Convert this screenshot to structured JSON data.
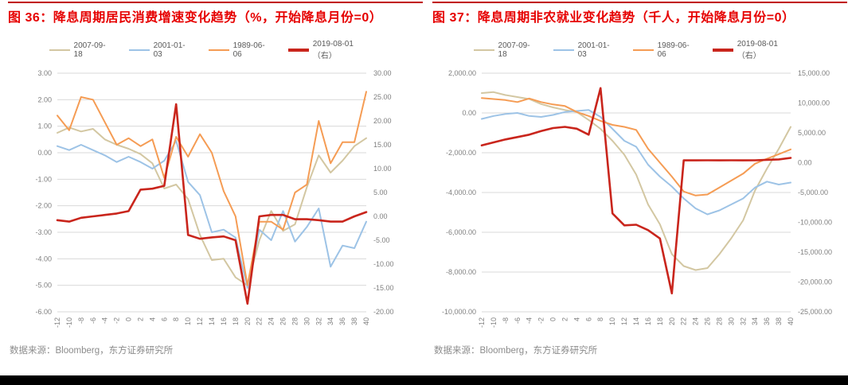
{
  "colors": {
    "title_red": "#E60000",
    "rule_red": "#C00000",
    "grid": "#D9D9D9",
    "axis_text": "#7F7F7F",
    "legend_text": "#595959",
    "source_text": "#8C8C8C",
    "bottom_bar": "#000000",
    "series_tan": "#D3C7A2",
    "series_blue": "#9DC3E6",
    "series_orange": "#F59C54",
    "series_red": "#C9251C"
  },
  "figures": [
    {
      "title": "图 36：降息周期居民消费增速变化趋势（%，开始降息月份=0）",
      "source": "数据来源：Bloomberg，东方证券研究所",
      "chart_data": {
        "type": "line",
        "grid": "horizontal",
        "legend_position": "top",
        "x": [
          -12,
          -10,
          -8,
          -6,
          -4,
          -2,
          0,
          2,
          4,
          6,
          8,
          10,
          12,
          14,
          16,
          18,
          20,
          22,
          24,
          26,
          28,
          30,
          32,
          34,
          36,
          38,
          40
        ],
        "x_tick_labels": [
          "-12",
          "-10",
          "-8",
          "-6",
          "-4",
          "-2",
          "0",
          "2",
          "4",
          "6",
          "8",
          "10",
          "12",
          "14",
          "16",
          "18",
          "20",
          "22",
          "24",
          "26",
          "28",
          "30",
          "32",
          "34",
          "36",
          "38",
          "40"
        ],
        "y_left": {
          "max": 3,
          "min": -6,
          "tick_labels": [
            "3.00",
            "2.00",
            "1.00",
            "0.00",
            "-1.00",
            "-2.00",
            "-3.00",
            "-4.00",
            "-5.00",
            "-6.00"
          ]
        },
        "y_right": {
          "max": 30,
          "min": -20,
          "tick_labels": [
            "30.00",
            "25.00",
            "20.00",
            "15.00",
            "10.00",
            "5.00",
            "0.00",
            "-5.00",
            "-10.00",
            "-15.00",
            "-20.00"
          ]
        },
        "series": [
          {
            "name": "2007-09-18",
            "color": "#D3C7A2",
            "axis": "left",
            "values": [
              0.75,
              0.95,
              0.8,
              0.9,
              0.5,
              0.3,
              0.15,
              -0.05,
              -0.4,
              -1.35,
              -1.2,
              -1.75,
              -3.1,
              -4.05,
              -4.0,
              -4.7,
              -5.0,
              -3.3,
              -2.2,
              -2.95,
              -2.7,
              -1.3,
              -0.1,
              -0.75,
              -0.3,
              0.25,
              0.55
            ]
          },
          {
            "name": "2001-01-03",
            "color": "#9DC3E6",
            "axis": "left",
            "values": [
              0.25,
              0.1,
              0.3,
              0.1,
              -0.1,
              -0.35,
              -0.15,
              -0.35,
              -0.6,
              -0.3,
              0.45,
              -1.1,
              -1.6,
              -3.0,
              -2.9,
              -3.2,
              -5.1,
              -2.9,
              -3.3,
              -2.2,
              -3.35,
              -2.8,
              -2.1,
              -4.3,
              -3.5,
              -3.6,
              -2.6
            ]
          },
          {
            "name": "1989-06-06",
            "color": "#F59C54",
            "axis": "left",
            "values": [
              1.4,
              0.85,
              2.1,
              2.0,
              1.15,
              0.3,
              0.55,
              0.25,
              0.5,
              -0.95,
              0.6,
              -0.15,
              0.7,
              0.0,
              -1.45,
              -2.4,
              -5.0,
              -2.6,
              -2.6,
              -2.9,
              -1.5,
              -1.2,
              1.2,
              -0.4,
              0.4,
              0.4,
              2.3
            ]
          },
          {
            "name": "2019-08-01（右）",
            "color": "#C9251C",
            "axis": "right",
            "values": [
              -0.8,
              -1.1,
              -0.3,
              0.0,
              0.3,
              0.6,
              1.1,
              5.6,
              5.8,
              6.4,
              23.5,
              -3.9,
              -4.7,
              -4.4,
              -4.2,
              -5.0,
              -18.3,
              0.0,
              0.3,
              0.3,
              -0.6,
              -0.6,
              -0.8,
              -1.1,
              -1.1,
              0.0,
              0.9
            ]
          }
        ]
      }
    },
    {
      "title": "图 37：降息周期非农就业变化趋势（千人，开始降息月份=0）",
      "source": "数据来源：Bloomberg，东方证券研究所",
      "chart_data": {
        "type": "line",
        "grid": "horizontal",
        "legend_position": "top",
        "x": [
          -12,
          -10,
          -8,
          -6,
          -4,
          -2,
          0,
          2,
          4,
          6,
          8,
          10,
          12,
          14,
          16,
          18,
          20,
          22,
          24,
          26,
          28,
          30,
          32,
          34,
          36,
          38,
          40
        ],
        "x_tick_labels": [
          "-12",
          "-10",
          "-8",
          "-6",
          "-4",
          "-2",
          "0",
          "2",
          "4",
          "6",
          "8",
          "10",
          "12",
          "14",
          "16",
          "18",
          "20",
          "22",
          "24",
          "26",
          "28",
          "30",
          "32",
          "34",
          "36",
          "38",
          "40"
        ],
        "y_left": {
          "max": 2000,
          "min": -10000,
          "tick_labels": [
            "2,000.00",
            "0.00",
            "-2,000.00",
            "-4,000.00",
            "-6,000.00",
            "-8,000.00",
            "-10,000.00"
          ]
        },
        "y_right": {
          "max": 15000,
          "min": -25000,
          "tick_labels": [
            "15,000.00",
            "10,000.00",
            "5,000.00",
            "0.00",
            "-5,000.00",
            "-10,000.00",
            "-15,000.00",
            "-20,000.00",
            "-25,000.00"
          ]
        },
        "series": [
          {
            "name": "2007-09-18",
            "color": "#D3C7A2",
            "axis": "left",
            "values": [
              1000,
              1050,
              900,
              800,
              700,
              450,
              280,
              150,
              50,
              -350,
              -800,
              -1400,
              -2100,
              -3100,
              -4600,
              -5600,
              -7100,
              -7700,
              -7900,
              -7800,
              -7100,
              -6300,
              -5400,
              -3900,
              -2800,
              -1800,
              -700
            ]
          },
          {
            "name": "2001-01-03",
            "color": "#9DC3E6",
            "axis": "left",
            "values": [
              -300,
              -150,
              -50,
              0,
              -150,
              -200,
              -100,
              50,
              100,
              150,
              -200,
              -800,
              -1400,
              -1700,
              -2600,
              -3200,
              -3700,
              -4300,
              -4800,
              -5100,
              -4900,
              -4600,
              -4300,
              -3750,
              -3450,
              -3600,
              -3500
            ]
          },
          {
            "name": "1989-06-06",
            "color": "#F59C54",
            "axis": "left",
            "values": [
              750,
              700,
              650,
              550,
              730,
              550,
              430,
              350,
              50,
              -150,
              -400,
              -600,
              -700,
              -850,
              -1800,
              -2500,
              -3200,
              -3950,
              -4150,
              -4100,
              -3750,
              -3400,
              -3050,
              -2550,
              -2300,
              -2070,
              -1830
            ]
          },
          {
            "name": "2019-08-01（右）",
            "color": "#C9251C",
            "axis": "right",
            "values": [
              2900,
              3400,
              3900,
              4300,
              4700,
              5300,
              5800,
              6000,
              5700,
              4700,
              12500,
              -8500,
              -10500,
              -10400,
              -11300,
              -12700,
              -21900,
              400,
              380,
              400,
              380,
              400,
              380,
              400,
              480,
              550,
              800
            ]
          }
        ]
      }
    }
  ]
}
